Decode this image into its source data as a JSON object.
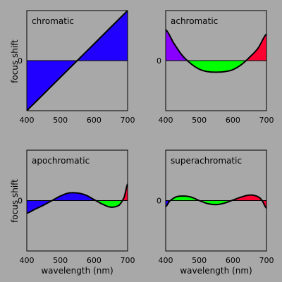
{
  "chart_data": [
    {
      "type": "area",
      "title": "chromatic",
      "xlabel": "",
      "ylabel": "focus shift",
      "xlim": [
        400,
        700
      ],
      "ylim": [
        -1,
        1
      ],
      "xticks": [
        400,
        500,
        600,
        700
      ],
      "yticks": [
        0
      ],
      "grid": false,
      "colors": {
        "negative": "#2200ff",
        "positive": "#ff0033"
      },
      "x": [
        400,
        450,
        500,
        550,
        600,
        650,
        700
      ],
      "y": [
        -1.0,
        -0.667,
        -0.333,
        0.0,
        0.333,
        0.667,
        1.0
      ]
    },
    {
      "type": "area",
      "title": "achromatic",
      "xlabel": "",
      "ylabel": "",
      "xlim": [
        400,
        700
      ],
      "ylim": [
        -1,
        1
      ],
      "xticks": [
        400,
        500,
        600,
        700
      ],
      "yticks": [
        0
      ],
      "grid": false,
      "colors": {
        "short": "#8800ff",
        "middle": "#00ff00",
        "long": "#ff0033"
      },
      "x": [
        400,
        425,
        450,
        475,
        500,
        525,
        550,
        575,
        600,
        625,
        650,
        675,
        700
      ],
      "y": [
        0.62,
        0.34,
        0.1,
        -0.06,
        -0.17,
        -0.22,
        -0.23,
        -0.22,
        -0.18,
        -0.08,
        0.07,
        0.25,
        0.53
      ]
    },
    {
      "type": "area",
      "title": "apochromatic",
      "xlabel": "wavelength (nm)",
      "ylabel": "focus shift",
      "xlim": [
        400,
        700
      ],
      "ylim": [
        -1,
        1
      ],
      "xticks": [
        400,
        500,
        600,
        700
      ],
      "yticks": [
        0
      ],
      "grid": false,
      "colors": {
        "short": "#2200ff",
        "middle": "#00ff00",
        "long": "#ff0033"
      },
      "x": [
        400,
        425,
        450,
        475,
        500,
        525,
        550,
        575,
        600,
        625,
        650,
        675,
        690,
        700
      ],
      "y": [
        -0.25,
        -0.17,
        -0.09,
        0.0,
        0.09,
        0.15,
        0.15,
        0.11,
        0.02,
        -0.07,
        -0.13,
        -0.09,
        0.07,
        0.33
      ]
    },
    {
      "type": "area",
      "title": "superachromatic",
      "xlabel": "wavelength (nm)",
      "ylabel": "",
      "xlim": [
        400,
        700
      ],
      "ylim": [
        -1,
        1
      ],
      "xticks": [
        400,
        500,
        600,
        700
      ],
      "yticks": [
        0
      ],
      "grid": false,
      "colors": {
        "short": "#2200ff",
        "middle": "#00ff00",
        "long": "#ff0033"
      },
      "x": [
        400,
        412,
        430,
        450,
        475,
        500,
        525,
        550,
        575,
        600,
        625,
        650,
        670,
        685,
        700
      ],
      "y": [
        -0.12,
        -0.01,
        0.07,
        0.09,
        0.07,
        0.0,
        -0.06,
        -0.08,
        -0.05,
        0.01,
        0.07,
        0.11,
        0.09,
        0.02,
        -0.15
      ]
    }
  ]
}
